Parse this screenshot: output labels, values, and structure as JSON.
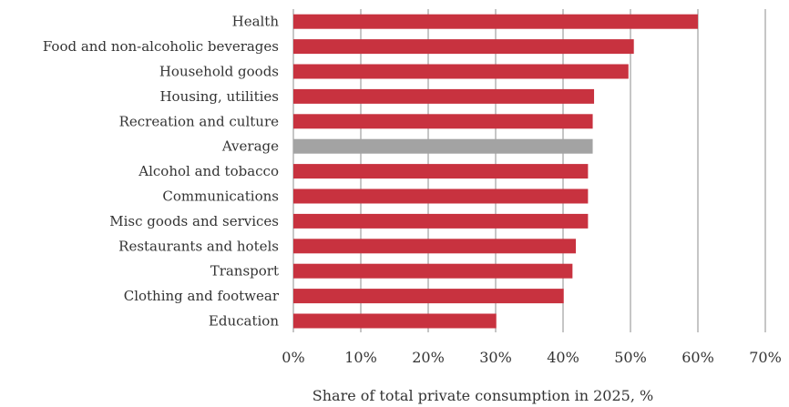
{
  "chart_data": {
    "type": "bar",
    "orientation": "horizontal",
    "categories": [
      "Health",
      "Food and non-alcoholic beverages",
      "Household goods",
      "Housing, utilities",
      "Recreation and culture",
      "Average",
      "Alcohol and tobacco",
      "Communications",
      "Misc goods and services",
      "Restaurants and hotels",
      "Transport",
      "Clothing and footwear",
      "Education"
    ],
    "values": [
      60,
      50.5,
      49.7,
      44.6,
      44.4,
      44.4,
      43.7,
      43.7,
      43.7,
      41.9,
      41.4,
      40.1,
      30.1
    ],
    "highlight_category": "Average",
    "xlabel": "Share of total private consumption in 2025, %",
    "xlim": [
      0,
      70
    ],
    "xticks": [
      0,
      10,
      20,
      30,
      40,
      50,
      60,
      70
    ],
    "xtick_labels": [
      "0%",
      "10%",
      "20%",
      "30%",
      "40%",
      "50%",
      "60%",
      "70%"
    ],
    "grid": "vertical",
    "colors": {
      "bar": "#c8323f",
      "highlight": "#a3a3a3",
      "grid": "#8c8c8c"
    }
  }
}
